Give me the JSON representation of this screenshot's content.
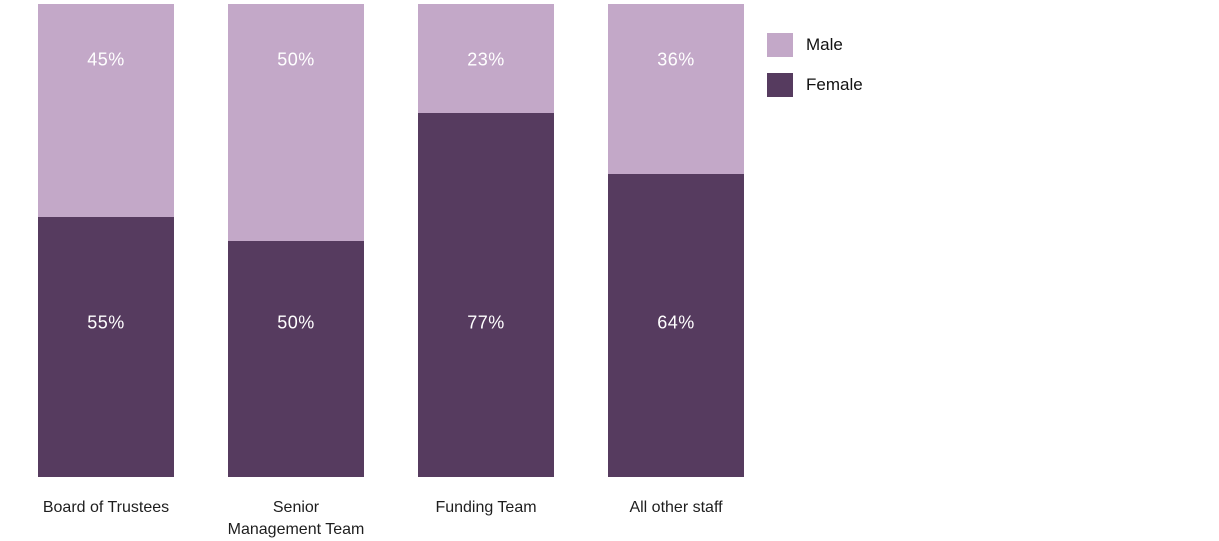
{
  "chart_data": {
    "type": "bar",
    "subtype": "stacked-100-percent",
    "title": "",
    "categories": [
      "Board of Trustees",
      "Senior\nManagement Team",
      "Funding Team",
      "All other staff"
    ],
    "series": [
      {
        "name": "Male",
        "color": "#C3A8C8",
        "values": [
          45,
          50,
          23,
          36
        ]
      },
      {
        "name": "Female",
        "color": "#563B5F",
        "values": [
          55,
          50,
          77,
          64
        ]
      }
    ],
    "value_suffix": "%",
    "ylim": [
      0,
      100
    ],
    "grid": false,
    "axes_visible": false,
    "legend_position": "top-right",
    "data_label_color": "#FFFFFF",
    "category_label_color": "#1E1E1E",
    "legend_label_color": "#111111",
    "background": "#FFFFFF"
  }
}
